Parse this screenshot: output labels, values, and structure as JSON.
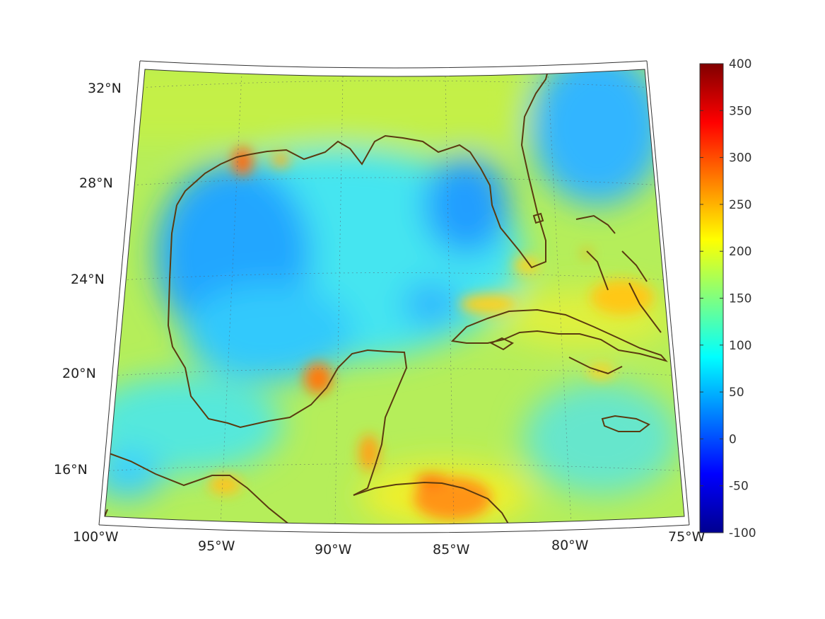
{
  "map": {
    "projection": "conic",
    "region": "Gulf of Mexico and Caribbean",
    "lon_range": [
      -100,
      -75
    ],
    "lat_range": [
      14,
      33
    ],
    "lat_ticks": [
      {
        "value": 32,
        "label": "32°N"
      },
      {
        "value": 28,
        "label": "28°N"
      },
      {
        "value": 24,
        "label": "24°N"
      },
      {
        "value": 20,
        "label": "20°N"
      },
      {
        "value": 16,
        "label": "16°N"
      }
    ],
    "lon_ticks": [
      {
        "value": -100,
        "label": "100°W"
      },
      {
        "value": -95,
        "label": "95°W"
      },
      {
        "value": -90,
        "label": "90°W"
      },
      {
        "value": -85,
        "label": "85°W"
      },
      {
        "value": -80,
        "label": "80°W"
      },
      {
        "value": -75,
        "label": "75°W"
      }
    ],
    "grid": true,
    "coastline_color": "#5a3a10",
    "colormap": "jet"
  },
  "colorbar": {
    "min": -100,
    "max": 400,
    "placement": "right",
    "ticks": [
      {
        "value": 400,
        "label": "400"
      },
      {
        "value": 350,
        "label": "350"
      },
      {
        "value": 300,
        "label": "300"
      },
      {
        "value": 250,
        "label": "250"
      },
      {
        "value": 200,
        "label": "200"
      },
      {
        "value": 150,
        "label": "150"
      },
      {
        "value": 100,
        "label": "100"
      },
      {
        "value": 50,
        "label": "50"
      },
      {
        "value": 0,
        "label": "0"
      },
      {
        "value": -50,
        "label": "-50"
      },
      {
        "value": -100,
        "label": "-100"
      }
    ]
  },
  "field_features": [
    {
      "name": "western-gulf-low",
      "value": 60
    },
    {
      "name": "eastern-gulf-low",
      "value": 60
    },
    {
      "name": "central-gulf",
      "value": 90
    },
    {
      "name": "sabine-pass-peak",
      "value": 290
    },
    {
      "name": "campeche-peak",
      "value": 270
    },
    {
      "name": "honduras-coast-peak",
      "value": 260
    },
    {
      "name": "bahamas-high",
      "value": 230
    },
    {
      "name": "atlantic-low",
      "value": 70
    },
    {
      "name": "land-background",
      "value": 180
    }
  ]
}
